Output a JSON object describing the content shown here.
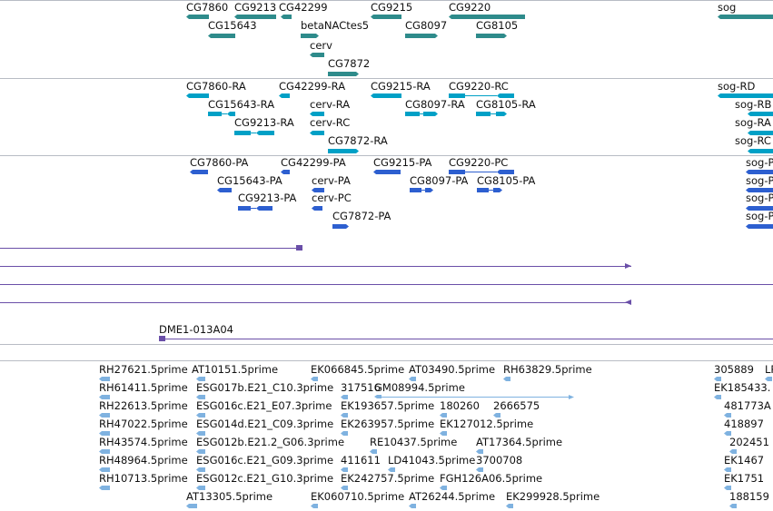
{
  "colors": {
    "gene": "#2e8b8b",
    "mrna": "#00a0c6",
    "cds": "#2d5fd0",
    "clone": "#6a4fa8",
    "est": "#7fb2e0",
    "separator": "#b8bcc4"
  },
  "tracks": {
    "genes": {
      "color_key": "gene",
      "features": [
        {
          "label": "CG7860",
          "strand": "-"
        },
        {
          "label": "CG9213",
          "strand": "-"
        },
        {
          "label": "CG42299",
          "strand": "-"
        },
        {
          "label": "CG15643",
          "strand": "-"
        },
        {
          "label": "betaNACtes5",
          "strand": "+"
        },
        {
          "label": "CG9215",
          "strand": "-"
        },
        {
          "label": "CG9220",
          "strand": "-"
        },
        {
          "label": "CG8097",
          "strand": "+"
        },
        {
          "label": "CG8105",
          "strand": "+"
        },
        {
          "label": "cerv",
          "strand": "-"
        },
        {
          "label": "CG7872",
          "strand": "+"
        },
        {
          "label": "sog",
          "strand": "-"
        }
      ]
    },
    "transcripts": {
      "color_key": "mrna",
      "features": [
        {
          "label": "CG7860-RA",
          "strand": "-"
        },
        {
          "label": "CG42299-RA",
          "strand": "-"
        },
        {
          "label": "CG9215-RA",
          "strand": "-"
        },
        {
          "label": "CG9220-RC",
          "strand": "-"
        },
        {
          "label": "sog-RD",
          "strand": "-"
        },
        {
          "label": "CG15643-RA",
          "strand": "-"
        },
        {
          "label": "cerv-RA",
          "strand": "-"
        },
        {
          "label": "CG8097-RA",
          "strand": "+"
        },
        {
          "label": "CG8105-RA",
          "strand": "+"
        },
        {
          "label": "sog-RB",
          "strand": "-"
        },
        {
          "label": "CG9213-RA",
          "strand": "-"
        },
        {
          "label": "cerv-RC",
          "strand": "-"
        },
        {
          "label": "sog-RA",
          "strand": "-"
        },
        {
          "label": "CG7872-RA",
          "strand": "+"
        },
        {
          "label": "sog-RC",
          "strand": "-"
        }
      ]
    },
    "proteins": {
      "color_key": "cds",
      "features": [
        {
          "label": "CG7860-PA",
          "strand": "-"
        },
        {
          "label": "CG42299-PA",
          "strand": "-"
        },
        {
          "label": "CG9215-PA",
          "strand": "-"
        },
        {
          "label": "CG9220-PC",
          "strand": "-"
        },
        {
          "label": "sog-PD",
          "strand": "-"
        },
        {
          "label": "CG15643-PA",
          "strand": "-"
        },
        {
          "label": "cerv-PA",
          "strand": "-"
        },
        {
          "label": "CG8097-PA",
          "strand": "+"
        },
        {
          "label": "CG8105-PA",
          "strand": "+"
        },
        {
          "label": "sog-PB",
          "strand": "-"
        },
        {
          "label": "CG9213-PA",
          "strand": "-"
        },
        {
          "label": "cerv-PC",
          "strand": "-"
        },
        {
          "label": "sog-PA",
          "strand": "-"
        },
        {
          "label": "CG7872-PA",
          "strand": "+"
        },
        {
          "label": "sog-PC",
          "strand": "-"
        }
      ]
    },
    "clones": {
      "color_key": "clone",
      "features": [
        {
          "label": "",
          "strand": "+"
        },
        {
          "label": "",
          "strand": "+"
        },
        {
          "label": "",
          "strand": "-"
        },
        {
          "label": "DME1-013A04",
          "strand": "-"
        }
      ]
    },
    "ests": {
      "color_key": "est",
      "features": [
        {
          "label": "RH27621.5prime",
          "strand": "-"
        },
        {
          "label": "AT10151.5prime",
          "strand": "-"
        },
        {
          "label": "EK066845.5prime",
          "strand": "-"
        },
        {
          "label": "AT03490.5prime",
          "strand": "-"
        },
        {
          "label": "RH63829.5prime",
          "strand": "-"
        },
        {
          "label": "305889",
          "strand": "-"
        },
        {
          "label": "LP",
          "strand": "-"
        },
        {
          "label": "RH61411.5prime",
          "strand": "-"
        },
        {
          "label": "ESG017b.E21_C10.3prime",
          "strand": "-"
        },
        {
          "label": "317516",
          "strand": "-"
        },
        {
          "label": "GM08994.5prime",
          "strand": "+"
        },
        {
          "label": "EK185433.",
          "strand": "-"
        },
        {
          "label": "RH22613.5prime",
          "strand": "-"
        },
        {
          "label": "ESG016c.E21_E07.3prime",
          "strand": "-"
        },
        {
          "label": "EK193657.5prime",
          "strand": "-"
        },
        {
          "label": "180260",
          "strand": "-"
        },
        {
          "label": "2666575",
          "strand": "-"
        },
        {
          "label": "481773A",
          "strand": "-"
        },
        {
          "label": "RH47022.5prime",
          "strand": "-"
        },
        {
          "label": "ESG014d.E21_C09.3prime",
          "strand": "-"
        },
        {
          "label": "EK263957.5prime",
          "strand": "-"
        },
        {
          "label": "EK127012.5prime",
          "strand": "-"
        },
        {
          "label": "418897",
          "strand": "-"
        },
        {
          "label": "RH43574.5prime",
          "strand": "-"
        },
        {
          "label": "ESG012b.E21.2_G06.3prime",
          "strand": "-"
        },
        {
          "label": "RE10437.5prime",
          "strand": "-"
        },
        {
          "label": "AT17364.5prime",
          "strand": "-"
        },
        {
          "label": "202451",
          "strand": "-"
        },
        {
          "label": "RH48964.5prime",
          "strand": "-"
        },
        {
          "label": "ESG016c.E21_G09.3prime",
          "strand": "-"
        },
        {
          "label": "411611",
          "strand": "-"
        },
        {
          "label": "LD41043.5prime",
          "strand": "-"
        },
        {
          "label": "3700708",
          "strand": "-"
        },
        {
          "label": "EK1467",
          "strand": "-"
        },
        {
          "label": "RH10713.5prime",
          "strand": "-"
        },
        {
          "label": "ESG012c.E21_G10.3prime",
          "strand": "-"
        },
        {
          "label": "EK242757.5prime",
          "strand": "-"
        },
        {
          "label": "FGH126A06.5prime",
          "strand": "-"
        },
        {
          "label": "EK1751",
          "strand": "-"
        },
        {
          "label": "AT13305.5prime",
          "strand": "-"
        },
        {
          "label": "EK060710.5prime",
          "strand": "-"
        },
        {
          "label": "AT26244.5prime",
          "strand": "-"
        },
        {
          "label": "EK299928.5prime",
          "strand": "-"
        },
        {
          "label": "188159",
          "strand": "-"
        }
      ]
    }
  }
}
